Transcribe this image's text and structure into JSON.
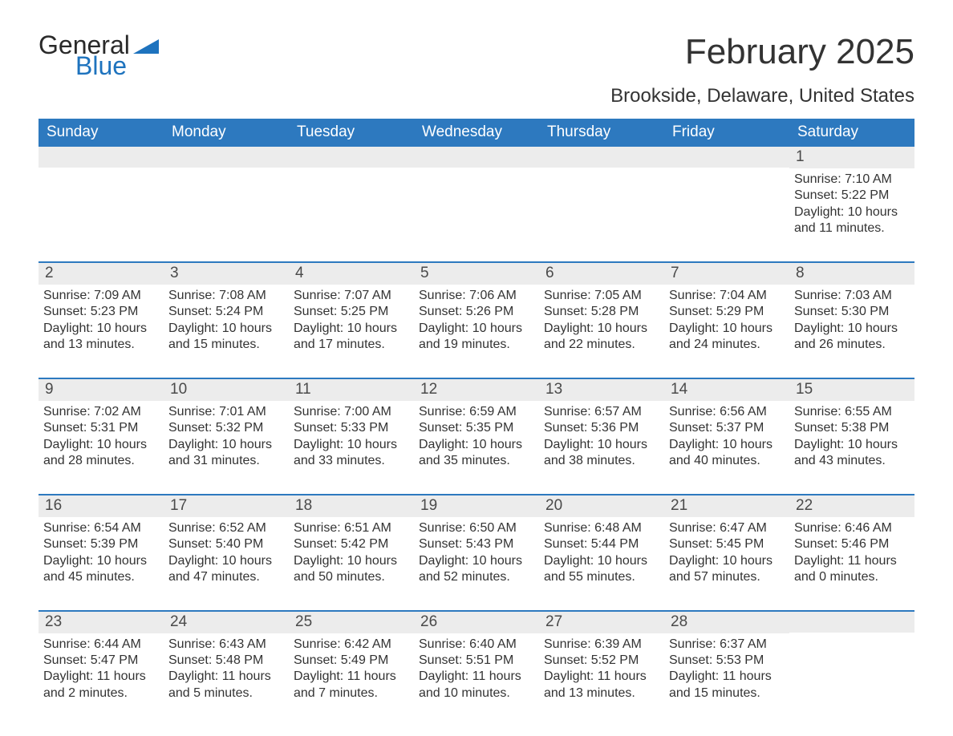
{
  "brand": {
    "word1": "General",
    "word2": "Blue",
    "accent_color": "#1e73be"
  },
  "title": "February 2025",
  "location": "Brookside, Delaware, United States",
  "header_bg": "#2d79bf",
  "header_fg": "#ffffff",
  "daynum_bg": "#ececec",
  "week_border": "#2d79bf",
  "weekdays": [
    "Sunday",
    "Monday",
    "Tuesday",
    "Wednesday",
    "Thursday",
    "Friday",
    "Saturday"
  ],
  "weeks": [
    [
      {
        "n": "",
        "sunrise": "",
        "sunset": "",
        "daylight": ""
      },
      {
        "n": "",
        "sunrise": "",
        "sunset": "",
        "daylight": ""
      },
      {
        "n": "",
        "sunrise": "",
        "sunset": "",
        "daylight": ""
      },
      {
        "n": "",
        "sunrise": "",
        "sunset": "",
        "daylight": ""
      },
      {
        "n": "",
        "sunrise": "",
        "sunset": "",
        "daylight": ""
      },
      {
        "n": "",
        "sunrise": "",
        "sunset": "",
        "daylight": ""
      },
      {
        "n": "1",
        "sunrise": "Sunrise: 7:10 AM",
        "sunset": "Sunset: 5:22 PM",
        "daylight": "Daylight: 10 hours and 11 minutes."
      }
    ],
    [
      {
        "n": "2",
        "sunrise": "Sunrise: 7:09 AM",
        "sunset": "Sunset: 5:23 PM",
        "daylight": "Daylight: 10 hours and 13 minutes."
      },
      {
        "n": "3",
        "sunrise": "Sunrise: 7:08 AM",
        "sunset": "Sunset: 5:24 PM",
        "daylight": "Daylight: 10 hours and 15 minutes."
      },
      {
        "n": "4",
        "sunrise": "Sunrise: 7:07 AM",
        "sunset": "Sunset: 5:25 PM",
        "daylight": "Daylight: 10 hours and 17 minutes."
      },
      {
        "n": "5",
        "sunrise": "Sunrise: 7:06 AM",
        "sunset": "Sunset: 5:26 PM",
        "daylight": "Daylight: 10 hours and 19 minutes."
      },
      {
        "n": "6",
        "sunrise": "Sunrise: 7:05 AM",
        "sunset": "Sunset: 5:28 PM",
        "daylight": "Daylight: 10 hours and 22 minutes."
      },
      {
        "n": "7",
        "sunrise": "Sunrise: 7:04 AM",
        "sunset": "Sunset: 5:29 PM",
        "daylight": "Daylight: 10 hours and 24 minutes."
      },
      {
        "n": "8",
        "sunrise": "Sunrise: 7:03 AM",
        "sunset": "Sunset: 5:30 PM",
        "daylight": "Daylight: 10 hours and 26 minutes."
      }
    ],
    [
      {
        "n": "9",
        "sunrise": "Sunrise: 7:02 AM",
        "sunset": "Sunset: 5:31 PM",
        "daylight": "Daylight: 10 hours and 28 minutes."
      },
      {
        "n": "10",
        "sunrise": "Sunrise: 7:01 AM",
        "sunset": "Sunset: 5:32 PM",
        "daylight": "Daylight: 10 hours and 31 minutes."
      },
      {
        "n": "11",
        "sunrise": "Sunrise: 7:00 AM",
        "sunset": "Sunset: 5:33 PM",
        "daylight": "Daylight: 10 hours and 33 minutes."
      },
      {
        "n": "12",
        "sunrise": "Sunrise: 6:59 AM",
        "sunset": "Sunset: 5:35 PM",
        "daylight": "Daylight: 10 hours and 35 minutes."
      },
      {
        "n": "13",
        "sunrise": "Sunrise: 6:57 AM",
        "sunset": "Sunset: 5:36 PM",
        "daylight": "Daylight: 10 hours and 38 minutes."
      },
      {
        "n": "14",
        "sunrise": "Sunrise: 6:56 AM",
        "sunset": "Sunset: 5:37 PM",
        "daylight": "Daylight: 10 hours and 40 minutes."
      },
      {
        "n": "15",
        "sunrise": "Sunrise: 6:55 AM",
        "sunset": "Sunset: 5:38 PM",
        "daylight": "Daylight: 10 hours and 43 minutes."
      }
    ],
    [
      {
        "n": "16",
        "sunrise": "Sunrise: 6:54 AM",
        "sunset": "Sunset: 5:39 PM",
        "daylight": "Daylight: 10 hours and 45 minutes."
      },
      {
        "n": "17",
        "sunrise": "Sunrise: 6:52 AM",
        "sunset": "Sunset: 5:40 PM",
        "daylight": "Daylight: 10 hours and 47 minutes."
      },
      {
        "n": "18",
        "sunrise": "Sunrise: 6:51 AM",
        "sunset": "Sunset: 5:42 PM",
        "daylight": "Daylight: 10 hours and 50 minutes."
      },
      {
        "n": "19",
        "sunrise": "Sunrise: 6:50 AM",
        "sunset": "Sunset: 5:43 PM",
        "daylight": "Daylight: 10 hours and 52 minutes."
      },
      {
        "n": "20",
        "sunrise": "Sunrise: 6:48 AM",
        "sunset": "Sunset: 5:44 PM",
        "daylight": "Daylight: 10 hours and 55 minutes."
      },
      {
        "n": "21",
        "sunrise": "Sunrise: 6:47 AM",
        "sunset": "Sunset: 5:45 PM",
        "daylight": "Daylight: 10 hours and 57 minutes."
      },
      {
        "n": "22",
        "sunrise": "Sunrise: 6:46 AM",
        "sunset": "Sunset: 5:46 PM",
        "daylight": "Daylight: 11 hours and 0 minutes."
      }
    ],
    [
      {
        "n": "23",
        "sunrise": "Sunrise: 6:44 AM",
        "sunset": "Sunset: 5:47 PM",
        "daylight": "Daylight: 11 hours and 2 minutes."
      },
      {
        "n": "24",
        "sunrise": "Sunrise: 6:43 AM",
        "sunset": "Sunset: 5:48 PM",
        "daylight": "Daylight: 11 hours and 5 minutes."
      },
      {
        "n": "25",
        "sunrise": "Sunrise: 6:42 AM",
        "sunset": "Sunset: 5:49 PM",
        "daylight": "Daylight: 11 hours and 7 minutes."
      },
      {
        "n": "26",
        "sunrise": "Sunrise: 6:40 AM",
        "sunset": "Sunset: 5:51 PM",
        "daylight": "Daylight: 11 hours and 10 minutes."
      },
      {
        "n": "27",
        "sunrise": "Sunrise: 6:39 AM",
        "sunset": "Sunset: 5:52 PM",
        "daylight": "Daylight: 11 hours and 13 minutes."
      },
      {
        "n": "28",
        "sunrise": "Sunrise: 6:37 AM",
        "sunset": "Sunset: 5:53 PM",
        "daylight": "Daylight: 11 hours and 15 minutes."
      },
      {
        "n": "",
        "sunrise": "",
        "sunset": "",
        "daylight": ""
      }
    ]
  ]
}
